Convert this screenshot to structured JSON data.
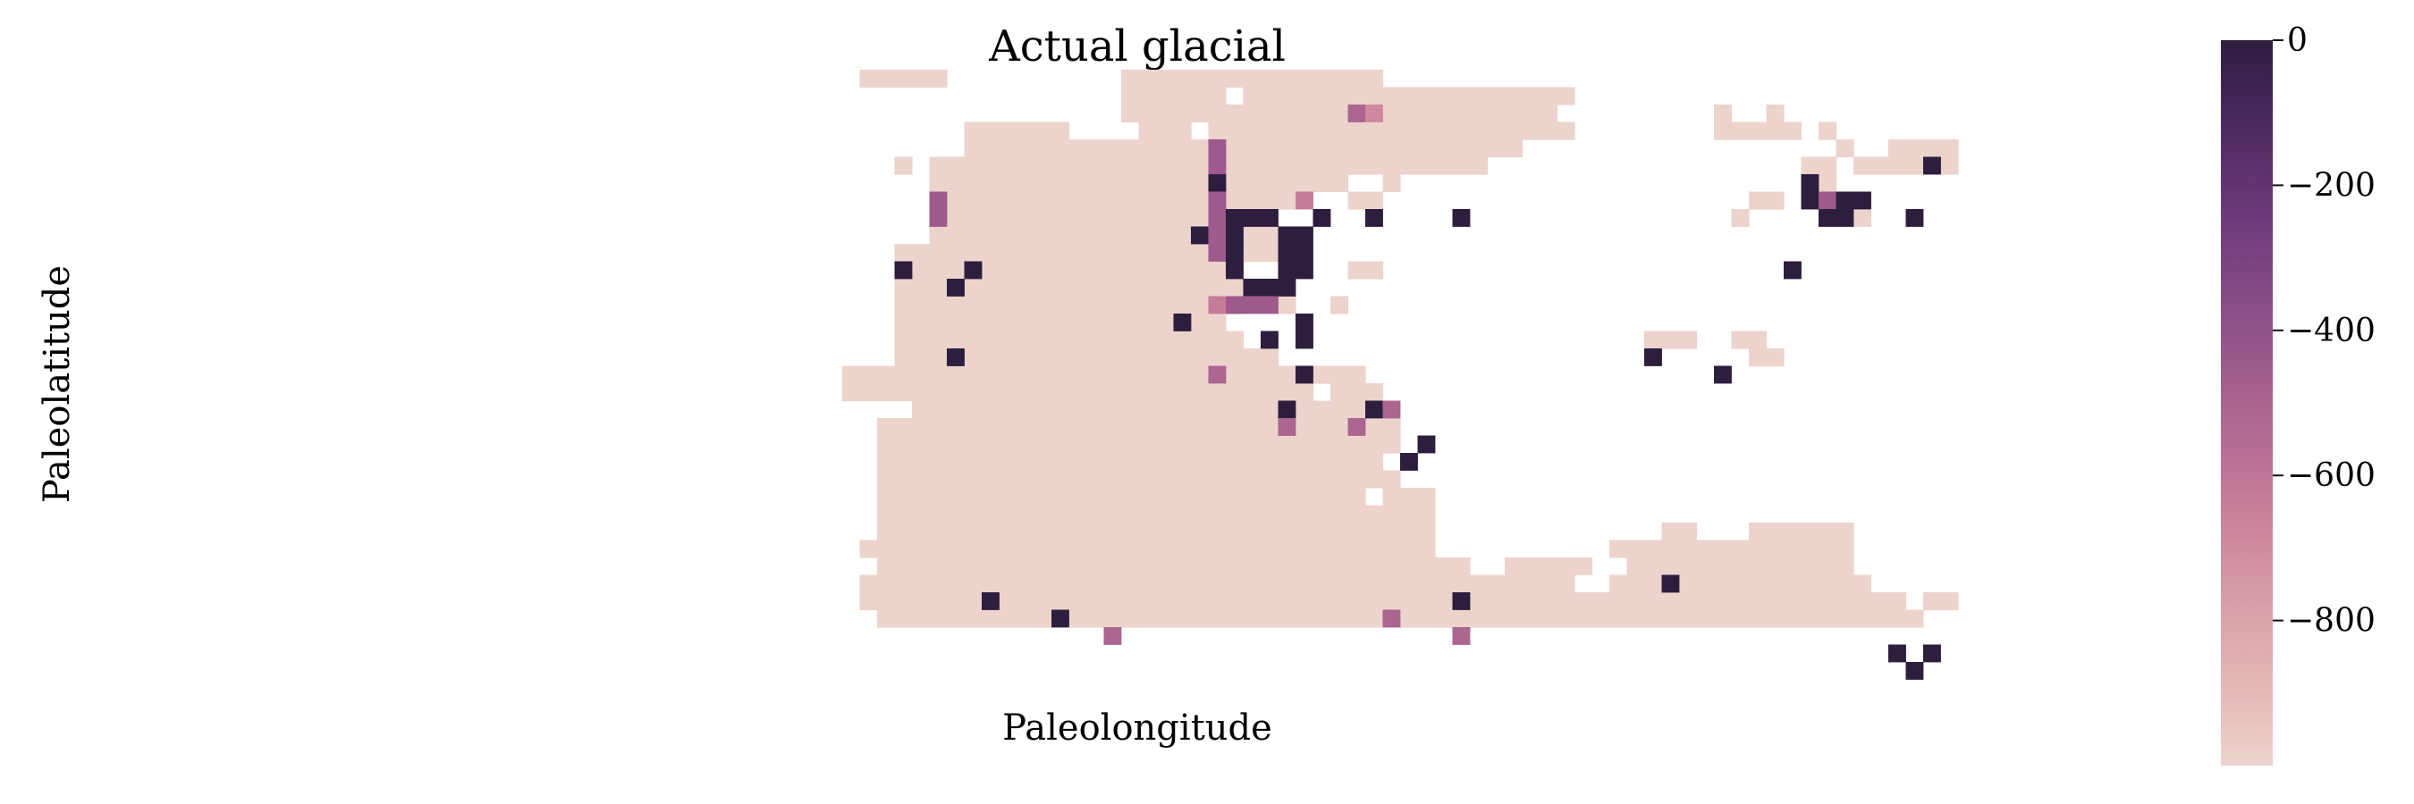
{
  "chart_data": {
    "type": "heatmap",
    "title": "Actual glacial",
    "xlabel": "Paleolongitude",
    "ylabel": "Paleolatitude",
    "colorbar": {
      "ticks": [
        0,
        -200,
        -400,
        -600,
        -800
      ],
      "tick_labels": [
        "0",
        "−200",
        "−400",
        "−600",
        "−800"
      ],
      "range": [
        -1000,
        0
      ],
      "colors": [
        "#ecd3cc",
        "#e2aeb0",
        "#c98099",
        "#9e5a8c",
        "#6e3b7c",
        "#432556",
        "#2d1e3e"
      ]
    },
    "grid": false,
    "land_color": "#ecd3cc",
    "land_rows": [
      [
        [
          1,
          5
        ],
        [
          16,
          30
        ]
      ],
      [
        [
          16,
          21
        ],
        [
          23,
          41
        ]
      ],
      [
        [
          16,
          40
        ],
        [
          50,
          50
        ],
        [
          53,
          53
        ]
      ],
      [
        [
          7,
          12
        ],
        [
          17,
          19
        ],
        [
          21,
          32
        ],
        [
          33,
          41
        ],
        [
          50,
          54
        ],
        [
          56,
          56
        ]
      ],
      [
        [
          7,
          33
        ],
        [
          34,
          38
        ],
        [
          57,
          57
        ],
        [
          60,
          63
        ]
      ],
      [
        [
          3,
          3
        ],
        [
          5,
          33
        ],
        [
          34,
          36
        ],
        [
          55,
          56
        ],
        [
          58,
          63
        ]
      ],
      [
        [
          5,
          26
        ],
        [
          27,
          28
        ],
        [
          31,
          31
        ],
        [
          55,
          56
        ]
      ],
      [
        [
          5,
          26
        ],
        [
          29,
          30
        ],
        [
          52,
          53
        ],
        [
          55,
          58
        ]
      ],
      [
        [
          5,
          23
        ],
        [
          51,
          51
        ],
        [
          56,
          58
        ]
      ],
      [
        [
          5,
          24
        ]
      ],
      [
        [
          3,
          24
        ]
      ],
      [
        [
          3,
          21
        ],
        [
          29,
          30
        ]
      ],
      [
        [
          3,
          22
        ]
      ],
      [
        [
          3,
          22
        ],
        [
          25,
          25
        ],
        [
          28,
          28
        ]
      ],
      [
        [
          3,
          21
        ],
        [
          26,
          26
        ]
      ],
      [
        [
          3,
          22
        ],
        [
          26,
          26
        ],
        [
          46,
          48
        ],
        [
          51,
          52
        ]
      ],
      [
        [
          3,
          24
        ],
        [
          52,
          53
        ]
      ],
      [
        [
          0,
          29
        ]
      ],
      [
        [
          0,
          26
        ],
        [
          28,
          30
        ]
      ],
      [
        [
          4,
          30
        ]
      ],
      [
        [
          2,
          31
        ]
      ],
      [
        [
          2,
          31
        ]
      ],
      [
        [
          2,
          30
        ]
      ],
      [
        [
          2,
          31
        ]
      ],
      [
        [
          2,
          29
        ],
        [
          31,
          33
        ]
      ],
      [
        [
          2,
          33
        ]
      ],
      [
        [
          2,
          33
        ],
        [
          47,
          48
        ],
        [
          52,
          57
        ]
      ],
      [
        [
          1,
          33
        ],
        [
          44,
          57
        ]
      ],
      [
        [
          2,
          35
        ],
        [
          38,
          42
        ],
        [
          45,
          57
        ]
      ],
      [
        [
          1,
          41
        ],
        [
          44,
          58
        ]
      ],
      [
        [
          1,
          60
        ],
        [
          62,
          63
        ]
      ],
      [
        [
          2,
          61
        ]
      ]
    ],
    "cells": [
      {
        "row": 2,
        "col": 29,
        "value": -550
      },
      {
        "row": 2,
        "col": 30,
        "value": -700
      },
      {
        "row": 4,
        "col": 21,
        "value": -500
      },
      {
        "row": 5,
        "col": 21,
        "value": -500
      },
      {
        "row": 6,
        "col": 21,
        "value": 0
      },
      {
        "row": 7,
        "col": 5,
        "value": -500
      },
      {
        "row": 7,
        "col": 21,
        "value": -500
      },
      {
        "row": 7,
        "col": 26,
        "value": -650
      },
      {
        "row": 8,
        "col": 5,
        "value": -500
      },
      {
        "row": 8,
        "col": 21,
        "value": -500
      },
      {
        "row": 8,
        "col": 22,
        "value": 0
      },
      {
        "row": 8,
        "col": 23,
        "value": 0
      },
      {
        "row": 8,
        "col": 24,
        "value": 0
      },
      {
        "row": 8,
        "col": 27,
        "value": 0
      },
      {
        "row": 8,
        "col": 30,
        "value": 0
      },
      {
        "row": 8,
        "col": 35,
        "value": 0
      },
      {
        "row": 9,
        "col": 20,
        "value": 0
      },
      {
        "row": 9,
        "col": 21,
        "value": -500
      },
      {
        "row": 9,
        "col": 22,
        "value": 0
      },
      {
        "row": 9,
        "col": 25,
        "value": 0
      },
      {
        "row": 9,
        "col": 26,
        "value": 0
      },
      {
        "row": 10,
        "col": 21,
        "value": -500
      },
      {
        "row": 10,
        "col": 22,
        "value": 0
      },
      {
        "row": 10,
        "col": 25,
        "value": 0
      },
      {
        "row": 10,
        "col": 26,
        "value": 0
      },
      {
        "row": 11,
        "col": 3,
        "value": 0
      },
      {
        "row": 11,
        "col": 7,
        "value": 0
      },
      {
        "row": 11,
        "col": 22,
        "value": 0
      },
      {
        "row": 11,
        "col": 25,
        "value": 0
      },
      {
        "row": 11,
        "col": 26,
        "value": 0
      },
      {
        "row": 12,
        "col": 6,
        "value": 0
      },
      {
        "row": 12,
        "col": 23,
        "value": 0
      },
      {
        "row": 12,
        "col": 24,
        "value": 0
      },
      {
        "row": 12,
        "col": 25,
        "value": 0
      },
      {
        "row": 13,
        "col": 21,
        "value": -650
      },
      {
        "row": 13,
        "col": 22,
        "value": -500
      },
      {
        "row": 13,
        "col": 23,
        "value": -500
      },
      {
        "row": 13,
        "col": 24,
        "value": -500
      },
      {
        "row": 14,
        "col": 19,
        "value": 0
      },
      {
        "row": 14,
        "col": 26,
        "value": 0
      },
      {
        "row": 15,
        "col": 24,
        "value": 0
      },
      {
        "row": 15,
        "col": 26,
        "value": 0
      },
      {
        "row": 16,
        "col": 6,
        "value": 0
      },
      {
        "row": 17,
        "col": 21,
        "value": -550
      },
      {
        "row": 17,
        "col": 26,
        "value": 0
      },
      {
        "row": 19,
        "col": 25,
        "value": 0
      },
      {
        "row": 19,
        "col": 30,
        "value": 0
      },
      {
        "row": 19,
        "col": 31,
        "value": -550
      },
      {
        "row": 20,
        "col": 25,
        "value": -550
      },
      {
        "row": 20,
        "col": 29,
        "value": -550
      },
      {
        "row": 21,
        "col": 33,
        "value": 0
      },
      {
        "row": 22,
        "col": 32,
        "value": 0
      },
      {
        "row": 30,
        "col": 8,
        "value": 0
      },
      {
        "row": 30,
        "col": 35,
        "value": 0
      },
      {
        "row": 31,
        "col": 12,
        "value": 0
      },
      {
        "row": 31,
        "col": 31,
        "value": -550
      },
      {
        "row": 32,
        "col": 15,
        "value": -550
      },
      {
        "row": 32,
        "col": 35,
        "value": -550
      },
      {
        "row": 6,
        "col": 55,
        "value": 0
      },
      {
        "row": 7,
        "col": 55,
        "value": 0
      },
      {
        "row": 7,
        "col": 56,
        "value": -500
      },
      {
        "row": 7,
        "col": 57,
        "value": 0
      },
      {
        "row": 7,
        "col": 58,
        "value": 0
      },
      {
        "row": 8,
        "col": 56,
        "value": 0
      },
      {
        "row": 8,
        "col": 57,
        "value": 0
      },
      {
        "row": 8,
        "col": 61,
        "value": 0
      },
      {
        "row": 5,
        "col": 62,
        "value": 0
      },
      {
        "row": 11,
        "col": 54,
        "value": 0
      },
      {
        "row": 16,
        "col": 46,
        "value": 0
      },
      {
        "row": 17,
        "col": 50,
        "value": 0
      },
      {
        "row": 29,
        "col": 47,
        "value": 0
      },
      {
        "row": 33,
        "col": 60,
        "value": 0
      },
      {
        "row": 33,
        "col": 62,
        "value": 0
      },
      {
        "row": 34,
        "col": 61,
        "value": 0
      }
    ]
  }
}
